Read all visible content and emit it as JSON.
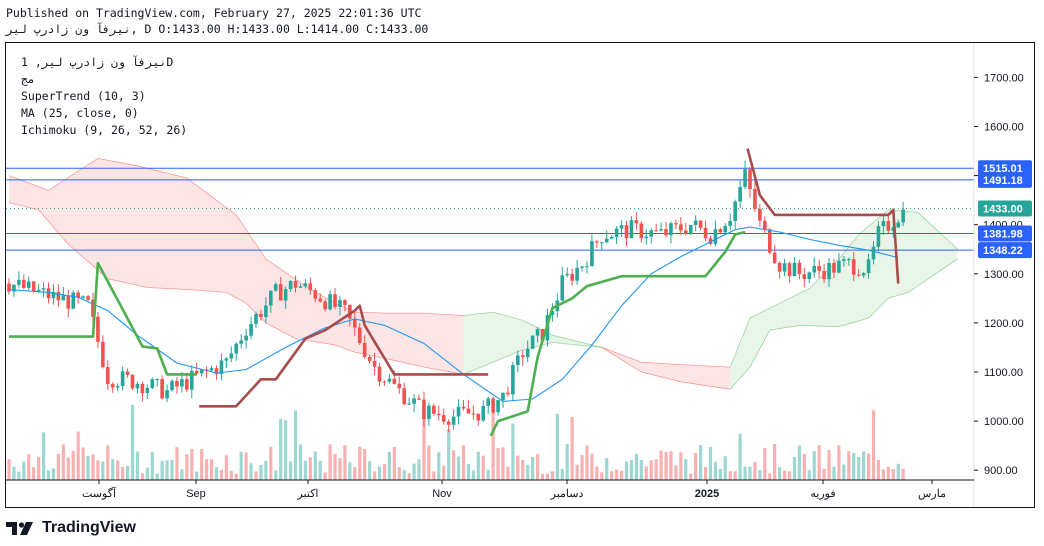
{
  "header": {
    "published": "Published on TradingView.com, February 27, 2025 22:01:36 UTC",
    "ohlc": "نیرفآ ون زادرپ لیر, D O:1433.00 H:1433.00 L:1414.00 C:1433.00"
  },
  "legend": {
    "symbol": "نیرفآ ون زادرپ لیر, 1D",
    "exchange": "مج",
    "supertrend": "SuperTrend (10, 3)",
    "ma": "MA (25, close, 0)",
    "ichimoku": "Ichimoku (9, 26, 52, 26)"
  },
  "footer": {
    "logo_text": "TradingView"
  },
  "colors": {
    "up": "#26a69a",
    "down": "#ef5350",
    "ma": "#2196f3",
    "supertrend_up": "#4caf50",
    "supertrend_down": "#a84b4b",
    "hline": "#2962ff"
  },
  "chart_data": {
    "type": "candlestick",
    "y_ticks": [
      "1700.00",
      "1600.00",
      "1500.00",
      "1400.00",
      "1300.00",
      "1200.00",
      "1100.00",
      "1000.00",
      "900.00"
    ],
    "ylim": [
      880,
      1770
    ],
    "x_labels": [
      "آگوست",
      "Sep",
      "اکتبر",
      "Nov",
      "دسامبر",
      "2025",
      "فوریه",
      "مارس"
    ],
    "price_labels": [
      {
        "text": "1515.01",
        "value": 1515.01,
        "style": "line"
      },
      {
        "text": "1491.18",
        "value": 1491.18,
        "style": "line"
      },
      {
        "text": "1433.00",
        "value": 1433.0,
        "style": "last"
      },
      {
        "text": "1400.00",
        "value": 1400.0,
        "style": "tick"
      },
      {
        "text": "1381.98",
        "value": 1381.98,
        "style": "line"
      },
      {
        "text": "1348.22",
        "value": 1348.22,
        "style": "line"
      }
    ],
    "supertrend": [
      {
        "i": 0,
        "v": 1172
      },
      {
        "i": 17,
        "v": 1172
      },
      {
        "i": 18,
        "v": 1322
      },
      {
        "i": 27,
        "v": 1152
      },
      {
        "i": 30,
        "v": 1148
      },
      {
        "i": 32,
        "v": 1095
      },
      {
        "i": 38,
        "v": 1095
      },
      {
        "i": 38.5,
        "v": 1030
      },
      {
        "i": 46,
        "v": 1030
      },
      {
        "i": 51,
        "v": 1085
      },
      {
        "i": 54,
        "v": 1085
      },
      {
        "i": 60,
        "v": 1168
      },
      {
        "i": 64,
        "v": 1185
      },
      {
        "i": 70,
        "v": 1225
      },
      {
        "i": 71,
        "v": 1235
      },
      {
        "i": 72,
        "v": 1195
      },
      {
        "i": 75,
        "v": 1145
      },
      {
        "i": 78,
        "v": 1095
      },
      {
        "i": 97,
        "v": 1095
      },
      {
        "i": 97.5,
        "v": 970
      },
      {
        "i": 99,
        "v": 1000
      },
      {
        "i": 105,
        "v": 1020
      },
      {
        "i": 107,
        "v": 1130
      },
      {
        "i": 110,
        "v": 1230
      },
      {
        "i": 114,
        "v": 1250
      },
      {
        "i": 117,
        "v": 1275
      },
      {
        "i": 124,
        "v": 1295
      },
      {
        "i": 141,
        "v": 1295
      },
      {
        "i": 145,
        "v": 1345
      },
      {
        "i": 147,
        "v": 1380
      },
      {
        "i": 149,
        "v": 1385
      },
      {
        "i": 149.5,
        "v": 1555
      },
      {
        "i": 152,
        "v": 1460
      },
      {
        "i": 155,
        "v": 1420
      },
      {
        "i": 178,
        "v": 1420
      },
      {
        "i": 179,
        "v": 1430
      },
      {
        "i": 180,
        "v": 1280
      }
    ],
    "ma_path": [
      {
        "i": 0,
        "v": 1268
      },
      {
        "i": 8,
        "v": 1262
      },
      {
        "i": 14,
        "v": 1252
      },
      {
        "i": 20,
        "v": 1225
      },
      {
        "i": 26,
        "v": 1175
      },
      {
        "i": 34,
        "v": 1118
      },
      {
        "i": 42,
        "v": 1098
      },
      {
        "i": 48,
        "v": 1105
      },
      {
        "i": 56,
        "v": 1150
      },
      {
        "i": 64,
        "v": 1190
      },
      {
        "i": 70,
        "v": 1208
      },
      {
        "i": 76,
        "v": 1195
      },
      {
        "i": 84,
        "v": 1158
      },
      {
        "i": 92,
        "v": 1095
      },
      {
        "i": 100,
        "v": 1040
      },
      {
        "i": 106,
        "v": 1045
      },
      {
        "i": 112,
        "v": 1085
      },
      {
        "i": 118,
        "v": 1155
      },
      {
        "i": 124,
        "v": 1235
      },
      {
        "i": 130,
        "v": 1300
      },
      {
        "i": 136,
        "v": 1335
      },
      {
        "i": 142,
        "v": 1365
      },
      {
        "i": 147,
        "v": 1390
      },
      {
        "i": 150,
        "v": 1395
      },
      {
        "i": 156,
        "v": 1385
      },
      {
        "i": 162,
        "v": 1370
      },
      {
        "i": 168,
        "v": 1358
      },
      {
        "i": 174,
        "v": 1348
      },
      {
        "i": 180,
        "v": 1333
      }
    ],
    "cloud_red": {
      "upper": [
        {
          "i": 0,
          "v": 1500
        },
        {
          "i": 8,
          "v": 1470
        },
        {
          "i": 18,
          "v": 1535
        },
        {
          "i": 26,
          "v": 1520
        },
        {
          "i": 36,
          "v": 1495
        },
        {
          "i": 46,
          "v": 1420
        },
        {
          "i": 52,
          "v": 1330
        },
        {
          "i": 60,
          "v": 1275
        },
        {
          "i": 66,
          "v": 1240
        },
        {
          "i": 70,
          "v": 1222
        },
        {
          "i": 76,
          "v": 1220
        },
        {
          "i": 84,
          "v": 1220
        },
        {
          "i": 92,
          "v": 1215
        }
      ],
      "lower": [
        {
          "i": 0,
          "v": 1445
        },
        {
          "i": 6,
          "v": 1430
        },
        {
          "i": 12,
          "v": 1360
        },
        {
          "i": 20,
          "v": 1290
        },
        {
          "i": 28,
          "v": 1272
        },
        {
          "i": 36,
          "v": 1268
        },
        {
          "i": 44,
          "v": 1262
        },
        {
          "i": 48,
          "v": 1240
        },
        {
          "i": 52,
          "v": 1200
        },
        {
          "i": 58,
          "v": 1168
        },
        {
          "i": 66,
          "v": 1155
        },
        {
          "i": 70,
          "v": 1140
        },
        {
          "i": 76,
          "v": 1128
        },
        {
          "i": 84,
          "v": 1110
        },
        {
          "i": 92,
          "v": 1095
        }
      ]
    },
    "cloud_green": {
      "upper": [
        {
          "i": 92,
          "v": 1215
        },
        {
          "i": 98,
          "v": 1222
        },
        {
          "i": 104,
          "v": 1205
        },
        {
          "i": 110,
          "v": 1175
        },
        {
          "i": 120,
          "v": 1150
        }
      ],
      "lower": [
        {
          "i": 92,
          "v": 1095
        },
        {
          "i": 98,
          "v": 1120
        },
        {
          "i": 104,
          "v": 1145
        },
        {
          "i": 110,
          "v": 1160
        },
        {
          "i": 120,
          "v": 1150
        }
      ]
    },
    "cloud_red2": {
      "upper": [
        {
          "i": 120,
          "v": 1150
        },
        {
          "i": 128,
          "v": 1120
        },
        {
          "i": 136,
          "v": 1115
        },
        {
          "i": 146,
          "v": 1110
        }
      ],
      "lower": [
        {
          "i": 120,
          "v": 1150
        },
        {
          "i": 128,
          "v": 1100
        },
        {
          "i": 136,
          "v": 1080
        },
        {
          "i": 146,
          "v": 1065
        }
      ]
    },
    "cloud_green2": {
      "upper": [
        {
          "i": 146,
          "v": 1110
        },
        {
          "i": 150,
          "v": 1210
        },
        {
          "i": 156,
          "v": 1240
        },
        {
          "i": 162,
          "v": 1270
        },
        {
          "i": 168,
          "v": 1330
        },
        {
          "i": 172,
          "v": 1380
        },
        {
          "i": 178,
          "v": 1430
        },
        {
          "i": 184,
          "v": 1425
        },
        {
          "i": 192,
          "v": 1350
        }
      ],
      "lower": [
        {
          "i": 146,
          "v": 1065
        },
        {
          "i": 150,
          "v": 1110
        },
        {
          "i": 154,
          "v": 1185
        },
        {
          "i": 160,
          "v": 1195
        },
        {
          "i": 168,
          "v": 1192
        },
        {
          "i": 174,
          "v": 1210
        },
        {
          "i": 178,
          "v": 1250
        },
        {
          "i": 182,
          "v": 1262
        },
        {
          "i": 192,
          "v": 1330
        }
      ]
    }
  }
}
